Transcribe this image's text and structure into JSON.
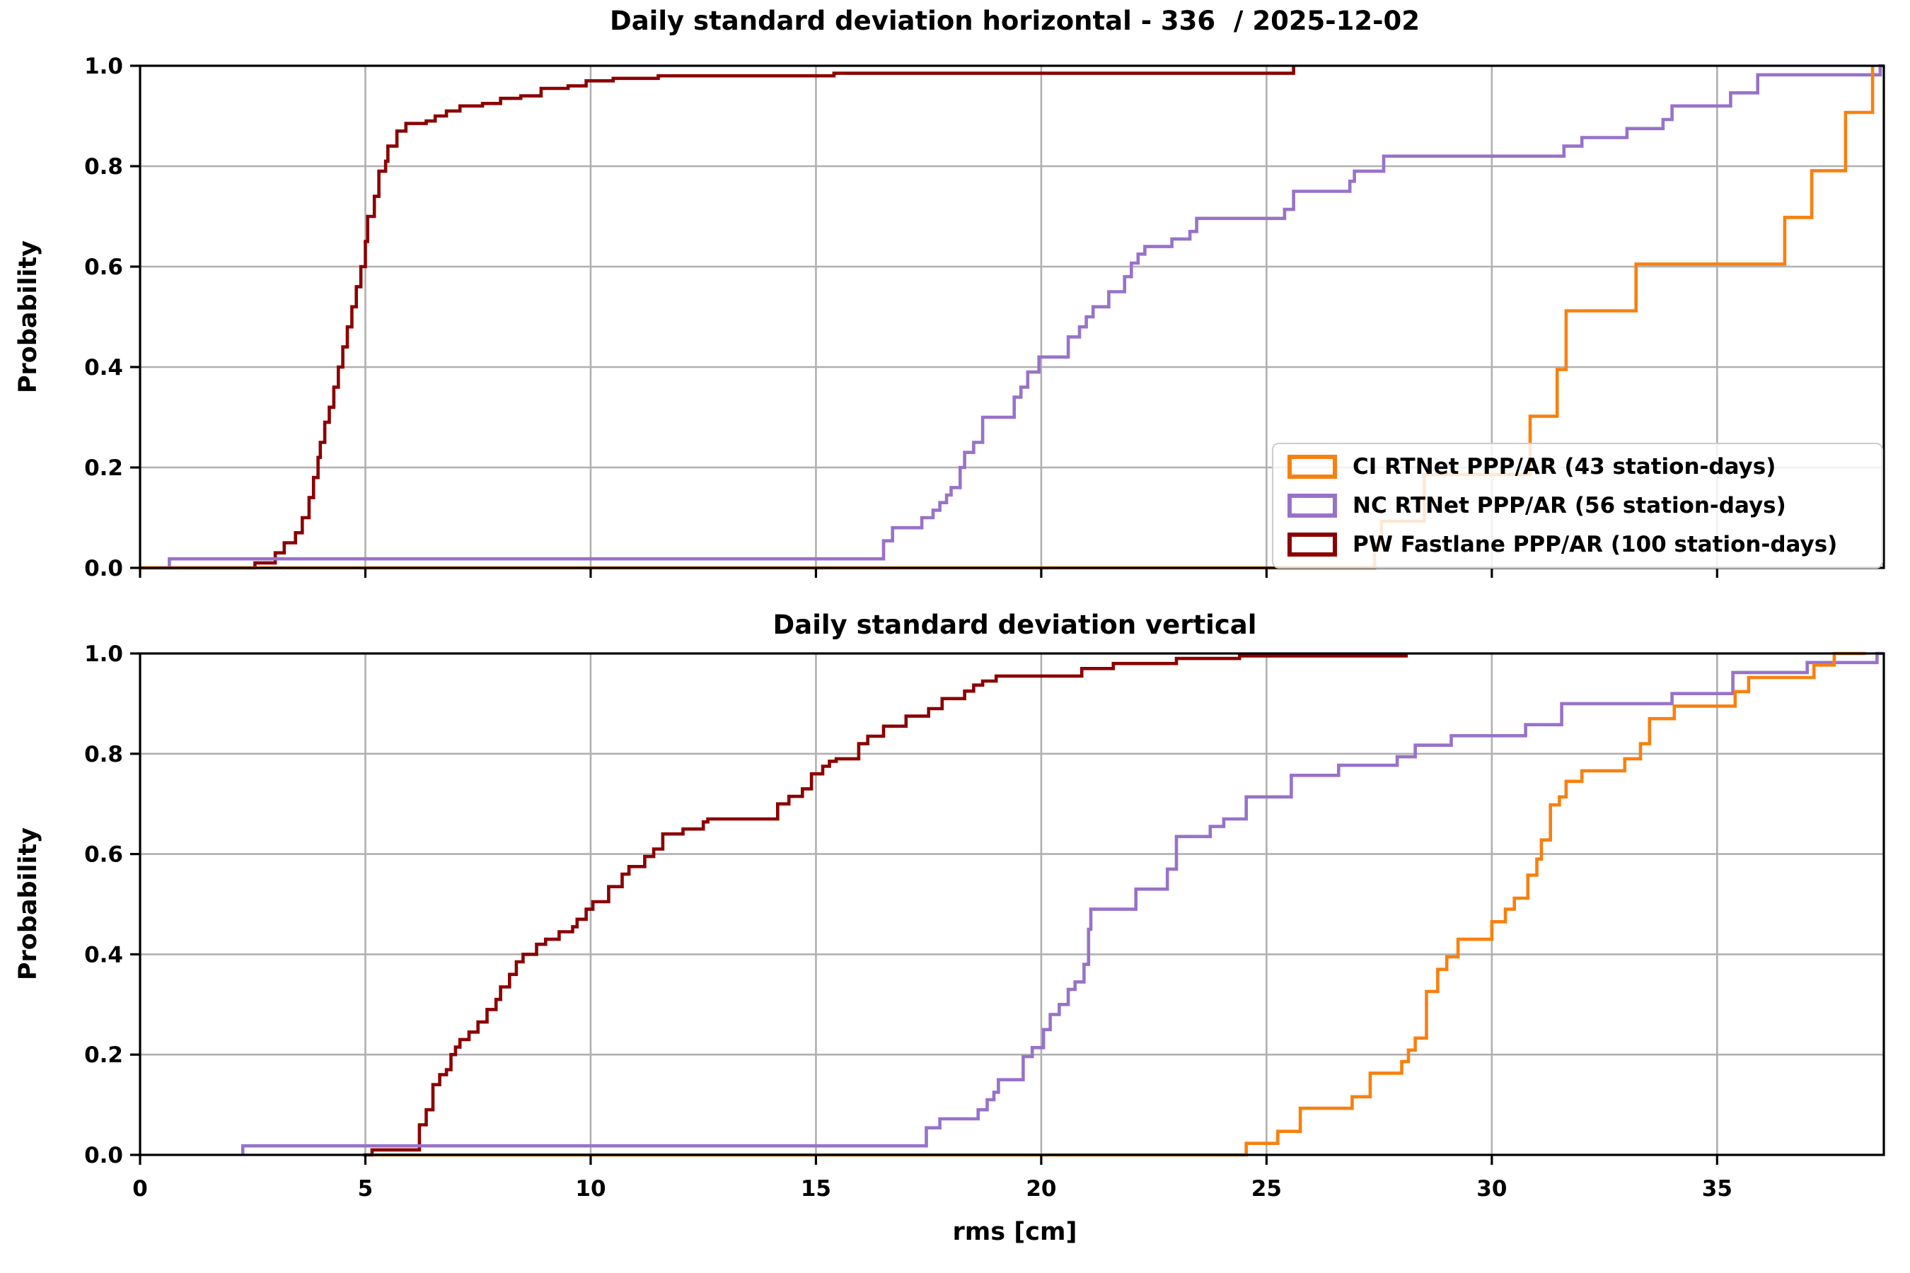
{
  "figure": {
    "background": "#ffffff",
    "grid_color": "#b0b0b0",
    "spine_color": "#000000"
  },
  "chart_data": [
    {
      "type": "line",
      "subtype": "empirical_cdf_steps",
      "title": "Daily standard deviation horizontal - 336  / 2025-12-02",
      "ylabel": "Probability",
      "xlabel": "",
      "xlim": [
        0,
        38.7
      ],
      "ylim": [
        0,
        1.0
      ],
      "xticks": [
        0,
        5,
        10,
        15,
        20,
        25,
        30,
        35
      ],
      "xtick_labels": [
        "0",
        "5",
        "10",
        "15",
        "20",
        "25",
        "30",
        "35"
      ],
      "show_xtick_labels": false,
      "yticks": [
        0,
        0.2,
        0.4,
        0.6,
        0.8,
        1.0
      ],
      "ytick_labels": [
        "0.0",
        "0.2",
        "0.4",
        "0.6",
        "0.8",
        "1.0"
      ],
      "grid": true,
      "legend": {
        "position": "lower right",
        "items": [
          {
            "label": "CI RTNet PPP/AR (43 station-days)",
            "color": "#f8800f"
          },
          {
            "label": "NC RTNet PPP/AR (56 station-days)",
            "color": "#9872c9"
          },
          {
            "label": "PW Fastlane PPP/AR (100 station-days)",
            "color": "#8b0000"
          }
        ]
      },
      "series": [
        {
          "name": "PW Fastlane PPP/AR",
          "color": "#8b0000",
          "x_start": 0,
          "x_end": 25.6,
          "steps": [
            [
              2.55,
              0.01
            ],
            [
              3.0,
              0.03
            ],
            [
              3.2,
              0.05
            ],
            [
              3.45,
              0.07
            ],
            [
              3.6,
              0.1
            ],
            [
              3.75,
              0.14
            ],
            [
              3.85,
              0.18
            ],
            [
              3.95,
              0.22
            ],
            [
              4.0,
              0.25
            ],
            [
              4.1,
              0.29
            ],
            [
              4.2,
              0.32
            ],
            [
              4.3,
              0.36
            ],
            [
              4.4,
              0.4
            ],
            [
              4.5,
              0.44
            ],
            [
              4.6,
              0.48
            ],
            [
              4.7,
              0.52
            ],
            [
              4.8,
              0.56
            ],
            [
              4.9,
              0.6
            ],
            [
              5.0,
              0.65
            ],
            [
              5.05,
              0.7
            ],
            [
              5.2,
              0.74
            ],
            [
              5.3,
              0.79
            ],
            [
              5.45,
              0.81
            ],
            [
              5.5,
              0.84
            ],
            [
              5.7,
              0.87
            ],
            [
              5.9,
              0.885
            ],
            [
              6.35,
              0.89
            ],
            [
              6.55,
              0.9
            ],
            [
              6.8,
              0.91
            ],
            [
              7.1,
              0.92
            ],
            [
              7.6,
              0.925
            ],
            [
              8.0,
              0.935
            ],
            [
              8.45,
              0.94
            ],
            [
              8.9,
              0.955
            ],
            [
              9.5,
              0.96
            ],
            [
              9.9,
              0.97
            ],
            [
              10.5,
              0.975
            ],
            [
              11.5,
              0.98
            ],
            [
              15.4,
              0.985
            ],
            [
              25.6,
              1.0
            ]
          ]
        },
        {
          "name": "NC RTNet PPP/AR",
          "color": "#9872c9",
          "x_start": 0.65,
          "x_end": 38.7,
          "steps": [
            [
              0.65,
              0.018
            ],
            [
              16.5,
              0.054
            ],
            [
              16.7,
              0.08
            ],
            [
              17.35,
              0.1
            ],
            [
              17.6,
              0.115
            ],
            [
              17.75,
              0.13
            ],
            [
              17.9,
              0.145
            ],
            [
              18.0,
              0.16
            ],
            [
              18.2,
              0.2
            ],
            [
              18.3,
              0.23
            ],
            [
              18.5,
              0.25
            ],
            [
              18.7,
              0.3
            ],
            [
              19.4,
              0.34
            ],
            [
              19.55,
              0.36
            ],
            [
              19.7,
              0.39
            ],
            [
              19.95,
              0.42
            ],
            [
              20.6,
              0.46
            ],
            [
              20.85,
              0.48
            ],
            [
              21.0,
              0.5
            ],
            [
              21.15,
              0.52
            ],
            [
              21.5,
              0.55
            ],
            [
              21.85,
              0.58
            ],
            [
              22.0,
              0.607
            ],
            [
              22.15,
              0.625
            ],
            [
              22.3,
              0.64
            ],
            [
              22.9,
              0.655
            ],
            [
              23.3,
              0.67
            ],
            [
              23.45,
              0.696
            ],
            [
              25.4,
              0.714
            ],
            [
              25.6,
              0.75
            ],
            [
              26.85,
              0.77
            ],
            [
              26.95,
              0.79
            ],
            [
              27.6,
              0.82
            ],
            [
              31.6,
              0.84
            ],
            [
              32.0,
              0.857
            ],
            [
              33.0,
              0.875
            ],
            [
              33.8,
              0.893
            ],
            [
              34.0,
              0.92
            ],
            [
              35.3,
              0.946
            ],
            [
              35.9,
              0.982
            ],
            [
              38.62,
              1.0
            ]
          ]
        },
        {
          "name": "CI RTNet PPP/AR",
          "color": "#f8800f",
          "x_start": 0,
          "x_end": 38.45,
          "steps": [
            [
              27.4,
              0.047
            ],
            [
              27.55,
              0.093
            ],
            [
              28.5,
              0.186
            ],
            [
              30.85,
              0.302
            ],
            [
              31.45,
              0.395
            ],
            [
              31.65,
              0.512
            ],
            [
              33.2,
              0.605
            ],
            [
              36.5,
              0.698
            ],
            [
              37.1,
              0.791
            ],
            [
              37.85,
              0.907
            ],
            [
              38.45,
              1.0
            ]
          ]
        }
      ]
    },
    {
      "type": "line",
      "subtype": "empirical_cdf_steps",
      "title": "Daily standard deviation vertical",
      "ylabel": "Probability",
      "xlabel": "rms [cm]",
      "xlim": [
        0,
        38.7
      ],
      "ylim": [
        0,
        1.0
      ],
      "xticks": [
        0,
        5,
        10,
        15,
        20,
        25,
        30,
        35
      ],
      "xtick_labels": [
        "0",
        "5",
        "10",
        "15",
        "20",
        "25",
        "30",
        "35"
      ],
      "show_xtick_labels": true,
      "yticks": [
        0,
        0.2,
        0.4,
        0.6,
        0.8,
        1.0
      ],
      "ytick_labels": [
        "0.0",
        "0.2",
        "0.4",
        "0.6",
        "0.8",
        "1.0"
      ],
      "grid": true,
      "legend": null,
      "series": [
        {
          "name": "PW Fastlane PPP/AR",
          "color": "#8b0000",
          "x_start": 4.95,
          "x_end": 28.1,
          "steps": [
            [
              5.15,
              0.01
            ],
            [
              6.2,
              0.06
            ],
            [
              6.35,
              0.09
            ],
            [
              6.5,
              0.14
            ],
            [
              6.65,
              0.16
            ],
            [
              6.8,
              0.17
            ],
            [
              6.9,
              0.2
            ],
            [
              7.0,
              0.215
            ],
            [
              7.1,
              0.23
            ],
            [
              7.3,
              0.245
            ],
            [
              7.5,
              0.265
            ],
            [
              7.7,
              0.29
            ],
            [
              7.9,
              0.31
            ],
            [
              8.0,
              0.335
            ],
            [
              8.2,
              0.36
            ],
            [
              8.35,
              0.385
            ],
            [
              8.5,
              0.4
            ],
            [
              8.8,
              0.42
            ],
            [
              9.0,
              0.43
            ],
            [
              9.3,
              0.445
            ],
            [
              9.6,
              0.455
            ],
            [
              9.7,
              0.47
            ],
            [
              9.9,
              0.49
            ],
            [
              10.05,
              0.505
            ],
            [
              10.4,
              0.535
            ],
            [
              10.7,
              0.56
            ],
            [
              10.85,
              0.575
            ],
            [
              11.2,
              0.595
            ],
            [
              11.4,
              0.61
            ],
            [
              11.6,
              0.64
            ],
            [
              12.05,
              0.65
            ],
            [
              12.5,
              0.664
            ],
            [
              12.6,
              0.67
            ],
            [
              14.15,
              0.7
            ],
            [
              14.4,
              0.715
            ],
            [
              14.7,
              0.73
            ],
            [
              14.9,
              0.76
            ],
            [
              15.15,
              0.775
            ],
            [
              15.3,
              0.785
            ],
            [
              15.45,
              0.79
            ],
            [
              15.95,
              0.82
            ],
            [
              16.15,
              0.835
            ],
            [
              16.5,
              0.855
            ],
            [
              17.0,
              0.875
            ],
            [
              17.5,
              0.89
            ],
            [
              17.8,
              0.91
            ],
            [
              18.3,
              0.925
            ],
            [
              18.5,
              0.937
            ],
            [
              18.7,
              0.945
            ],
            [
              19.0,
              0.955
            ],
            [
              20.9,
              0.97
            ],
            [
              21.6,
              0.98
            ],
            [
              23.0,
              0.99
            ],
            [
              24.4,
              0.995
            ],
            [
              28.1,
              1.0
            ]
          ]
        },
        {
          "name": "NC RTNet PPP/AR",
          "color": "#9872c9",
          "x_start": 2.28,
          "x_end": 38.7,
          "steps": [
            [
              2.28,
              0.018
            ],
            [
              17.45,
              0.054
            ],
            [
              17.75,
              0.072
            ],
            [
              18.6,
              0.09
            ],
            [
              18.8,
              0.11
            ],
            [
              18.95,
              0.125
            ],
            [
              19.05,
              0.15
            ],
            [
              19.6,
              0.196
            ],
            [
              19.8,
              0.214
            ],
            [
              20.05,
              0.25
            ],
            [
              20.2,
              0.28
            ],
            [
              20.4,
              0.3
            ],
            [
              20.6,
              0.33
            ],
            [
              20.75,
              0.345
            ],
            [
              20.95,
              0.38
            ],
            [
              21.05,
              0.45
            ],
            [
              21.1,
              0.49
            ],
            [
              22.1,
              0.53
            ],
            [
              22.8,
              0.57
            ],
            [
              23.0,
              0.635
            ],
            [
              23.75,
              0.655
            ],
            [
              24.05,
              0.67
            ],
            [
              24.55,
              0.714
            ],
            [
              25.55,
              0.757
            ],
            [
              26.6,
              0.777
            ],
            [
              27.9,
              0.794
            ],
            [
              28.3,
              0.817
            ],
            [
              29.1,
              0.836
            ],
            [
              30.75,
              0.858
            ],
            [
              31.55,
              0.9
            ],
            [
              34.0,
              0.92
            ],
            [
              35.35,
              0.962
            ],
            [
              37.0,
              0.982
            ],
            [
              38.55,
              1.0
            ]
          ]
        },
        {
          "name": "CI RTNet PPP/AR",
          "color": "#f8800f",
          "x_start": 5.2,
          "x_end": 38.3,
          "steps": [
            [
              24.55,
              0.023
            ],
            [
              25.25,
              0.047
            ],
            [
              25.75,
              0.093
            ],
            [
              26.9,
              0.116
            ],
            [
              27.3,
              0.163
            ],
            [
              28.0,
              0.186
            ],
            [
              28.15,
              0.209
            ],
            [
              28.3,
              0.233
            ],
            [
              28.55,
              0.326
            ],
            [
              28.8,
              0.37
            ],
            [
              29.0,
              0.395
            ],
            [
              29.25,
              0.43
            ],
            [
              30.0,
              0.465
            ],
            [
              30.3,
              0.49
            ],
            [
              30.5,
              0.512
            ],
            [
              30.8,
              0.558
            ],
            [
              31.0,
              0.59
            ],
            [
              31.1,
              0.628
            ],
            [
              31.3,
              0.698
            ],
            [
              31.5,
              0.714
            ],
            [
              31.65,
              0.745
            ],
            [
              32.0,
              0.766
            ],
            [
              32.95,
              0.79
            ],
            [
              33.3,
              0.82
            ],
            [
              33.5,
              0.87
            ],
            [
              34.05,
              0.895
            ],
            [
              35.4,
              0.924
            ],
            [
              35.7,
              0.952
            ],
            [
              37.15,
              0.977
            ],
            [
              37.6,
              1.0
            ]
          ]
        }
      ]
    }
  ]
}
